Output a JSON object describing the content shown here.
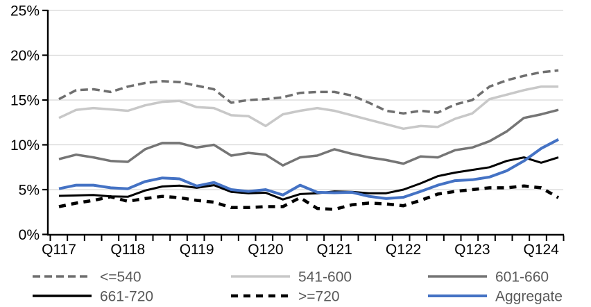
{
  "chart_data": {
    "type": "line",
    "title": "",
    "xlabel": "",
    "ylabel": "",
    "ylim": [
      0,
      25
    ],
    "ytick_step": 5,
    "ytick_labels": [
      "0%",
      "5%",
      "10%",
      "15%",
      "20%",
      "25%"
    ],
    "x_tick_labels": [
      "Q117",
      "Q118",
      "Q119",
      "Q120",
      "Q121",
      "Q122",
      "Q123",
      "Q124"
    ],
    "x_tick_label_indices": [
      0,
      4,
      8,
      12,
      16,
      20,
      24,
      28
    ],
    "n_points": 30,
    "grid": true,
    "legend_position": "bottom",
    "colors": {
      "axis": "#000000",
      "gridline": "#D6D6D6",
      "legend_text": "#595959",
      "accent_blue": "#4472C4"
    },
    "series": [
      {
        "name": "<=540",
        "color": "#6F6F6F",
        "style": "dashed",
        "width": 3.5,
        "values": [
          15.1,
          16.1,
          16.2,
          15.9,
          16.5,
          16.9,
          17.1,
          17.0,
          16.6,
          16.2,
          14.7,
          15.0,
          15.1,
          15.3,
          15.8,
          15.9,
          15.9,
          15.5,
          14.7,
          13.8,
          13.5,
          13.8,
          13.6,
          14.5,
          15.0,
          16.5,
          17.2,
          17.7,
          18.1,
          18.3
        ]
      },
      {
        "name": "541-600",
        "color": "#C8C8C8",
        "style": "solid",
        "width": 3.5,
        "values": [
          13.0,
          13.9,
          14.1,
          13.95,
          13.8,
          14.4,
          14.8,
          14.9,
          14.2,
          14.1,
          13.3,
          13.2,
          12.1,
          13.4,
          13.8,
          14.1,
          13.8,
          13.3,
          12.8,
          12.3,
          11.8,
          12.1,
          12.0,
          12.9,
          13.5,
          15.1,
          15.6,
          16.1,
          16.5,
          16.5
        ]
      },
      {
        "name": "601-660",
        "color": "#757575",
        "style": "solid",
        "width": 3.5,
        "values": [
          8.4,
          8.9,
          8.6,
          8.2,
          8.1,
          9.5,
          10.2,
          10.2,
          9.7,
          10.0,
          8.8,
          9.1,
          8.9,
          7.7,
          8.6,
          8.8,
          9.5,
          9.0,
          8.6,
          8.3,
          7.9,
          8.7,
          8.6,
          9.4,
          9.7,
          10.4,
          11.5,
          13.0,
          13.4,
          13.9
        ]
      },
      {
        "name": "661-720",
        "color": "#000000",
        "style": "solid",
        "width": 3,
        "values": [
          4.3,
          4.35,
          4.4,
          4.25,
          4.2,
          4.9,
          5.35,
          5.45,
          5.2,
          5.5,
          4.75,
          4.6,
          4.65,
          3.9,
          4.5,
          4.6,
          4.8,
          4.75,
          4.6,
          4.6,
          5.0,
          5.7,
          6.5,
          6.9,
          7.2,
          7.5,
          8.2,
          8.6,
          8.0,
          8.6
        ]
      },
      {
        "name": ">=720",
        "color": "#000000",
        "style": "dashed",
        "width": 4.5,
        "values": [
          3.1,
          3.5,
          3.8,
          4.2,
          3.7,
          4.0,
          4.25,
          4.1,
          3.8,
          3.6,
          3.0,
          3.0,
          3.1,
          3.1,
          4.1,
          2.9,
          2.8,
          3.3,
          3.5,
          3.4,
          3.2,
          3.8,
          4.5,
          4.8,
          5.0,
          5.2,
          5.2,
          5.4,
          5.2,
          4.1
        ]
      },
      {
        "name": "Aggregate",
        "color": "#4472C4",
        "style": "solid",
        "width": 4,
        "values": [
          5.1,
          5.5,
          5.5,
          5.2,
          5.1,
          5.9,
          6.3,
          6.2,
          5.4,
          5.8,
          5.0,
          4.8,
          5.0,
          4.4,
          5.5,
          4.7,
          4.65,
          4.7,
          4.25,
          4.0,
          4.15,
          4.8,
          5.5,
          6.0,
          6.1,
          6.4,
          7.1,
          8.2,
          9.6,
          10.6
        ]
      }
    ],
    "legend_rows": [
      [
        0,
        1,
        2
      ],
      [
        3,
        4,
        5
      ]
    ]
  }
}
